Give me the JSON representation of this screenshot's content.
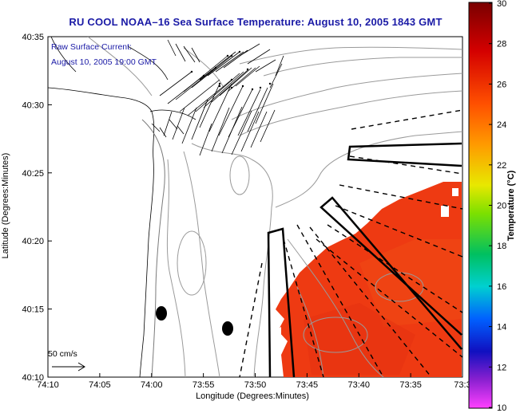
{
  "title": "RU COOL  NOAA–16  Sea Surface Temperature:  August 10, 2005 1843 GMT",
  "annotation": {
    "line1": "Raw Surface Current:",
    "line2": "August 10, 2005 19:00 GMT"
  },
  "scale_label": "50 cm/s",
  "axes": {
    "xlabel": "Longitude (Degrees:Minutes)",
    "ylabel": "Latitude (Degrees:Minutes)",
    "x_ticks": [
      "74:10",
      "74:05",
      "74:00",
      "73:55",
      "73:50",
      "73:45",
      "73:40",
      "73:35",
      "73:3"
    ],
    "y_ticks": [
      "40:35",
      "40:30",
      "40:25",
      "40:20",
      "40:15",
      "40:10"
    ]
  },
  "colorbar": {
    "label": "Temperature (°C)",
    "ticks": [
      "30",
      "28",
      "26",
      "24",
      "22",
      "20",
      "18",
      "16",
      "14",
      "12",
      "10"
    ],
    "min": 10,
    "max": 30
  },
  "colors": {
    "title": "#1a1aa6",
    "annotation": "#1a1aa6",
    "sst_fill": "#ee3a12"
  }
}
